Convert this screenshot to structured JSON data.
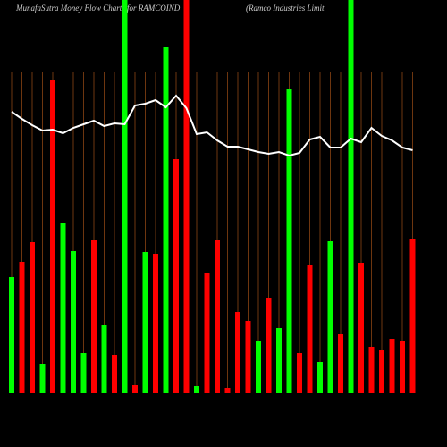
{
  "chart_data": {
    "type": "bar-line",
    "title": "MunafaSutra  Money Flow  Charts for RAMCOIND",
    "subtitle": "(Ramco  Industries Limit",
    "categories": [
      null,
      null,
      null,
      null,
      null,
      null,
      null,
      null,
      null,
      null,
      null,
      null,
      null,
      null,
      null,
      null,
      null,
      null,
      null,
      null,
      null,
      null,
      null,
      null,
      null,
      null,
      null,
      null,
      null,
      null,
      null,
      null,
      null,
      null,
      null,
      null,
      null,
      null,
      null,
      null
    ],
    "ylim": [
      0,
      440
    ],
    "grid": true,
    "grid_color": "#8b4513",
    "series": [
      {
        "type": "bar",
        "values": [
          130,
          147,
          169,
          33,
          351,
          191,
          159,
          45,
          172,
          77,
          43,
          460,
          9,
          158,
          156,
          387,
          262,
          460,
          8,
          135,
          172,
          6,
          91,
          81,
          59,
          107,
          73,
          340,
          45,
          144,
          35,
          170,
          66,
          460,
          146,
          52,
          48,
          61,
          59,
          173
        ],
        "colors": [
          "#00ff00",
          "#ff0000",
          "#ff0000",
          "#00ff00",
          "#ff0000",
          "#00ff00",
          "#00ff00",
          "#00ff00",
          "#ff0000",
          "#00ff00",
          "#ff0000",
          "#00ff00",
          "#ff0000",
          "#00ff00",
          "#ff0000",
          "#00ff00",
          "#ff0000",
          "#ff0000",
          "#00ff00",
          "#ff0000",
          "#ff0000",
          "#ff0000",
          "#ff0000",
          "#ff0000",
          "#00ff00",
          "#ff0000",
          "#00ff00",
          "#00ff00",
          "#ff0000",
          "#ff0000",
          "#00ff00",
          "#00ff00",
          "#ff0000",
          "#00ff00",
          "#ff0000",
          "#ff0000",
          "#ff0000",
          "#ff0000",
          "#ff0000",
          "#ff0000"
        ]
      },
      {
        "type": "line",
        "color": "#ffffff",
        "values": [
          315,
          307,
          300,
          294,
          295,
          291,
          297,
          301,
          305,
          299,
          302,
          301,
          322,
          324,
          328,
          320,
          333,
          319,
          290,
          292,
          283,
          276,
          276,
          273,
          270,
          268,
          270,
          266,
          269,
          284,
          287,
          275,
          275,
          285,
          281,
          297,
          288,
          283,
          275,
          272
        ]
      }
    ]
  }
}
